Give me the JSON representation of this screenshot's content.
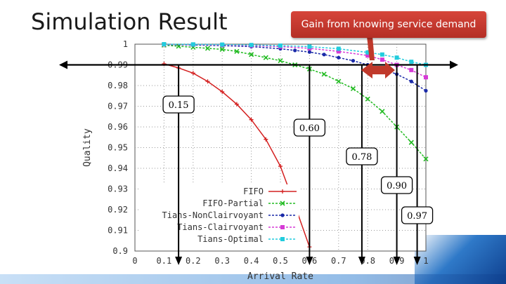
{
  "slide": {
    "title": "Simulation Result",
    "callout": "Gain from knowing service demand"
  },
  "chart_data": {
    "type": "line",
    "xlabel": "Arrival Rate",
    "ylabel": "Quality",
    "xlim": [
      0,
      1
    ],
    "ylim": [
      0.9,
      1
    ],
    "x_ticks": [
      "0",
      "0.1",
      "0.2",
      "0.3",
      "0.4",
      "0.5",
      "0.6",
      "0.7",
      "0.8",
      "0.9",
      "1"
    ],
    "y_ticks": [
      "1",
      "0.99",
      "0.98",
      "0.97",
      "0.96",
      "0.95",
      "0.94",
      "0.93",
      "0.92",
      "0.91",
      "0.9"
    ],
    "grid": true,
    "legend_position": "bottom-left",
    "series": [
      {
        "name": "FIFO",
        "color": "#d42020",
        "marker": "plus",
        "points": [
          [
            0.1,
            0.9905
          ],
          [
            0.15,
            0.9885
          ],
          [
            0.2,
            0.986
          ],
          [
            0.25,
            0.982
          ],
          [
            0.3,
            0.977
          ],
          [
            0.35,
            0.971
          ],
          [
            0.4,
            0.9635
          ],
          [
            0.45,
            0.954
          ],
          [
            0.5,
            0.941
          ],
          [
            0.55,
            0.922
          ],
          [
            0.6,
            0.902
          ]
        ]
      },
      {
        "name": "FIFO-Partial",
        "color": "#22bb22",
        "marker": "x",
        "points": [
          [
            0.1,
            0.9995
          ],
          [
            0.15,
            0.999
          ],
          [
            0.2,
            0.9985
          ],
          [
            0.25,
            0.998
          ],
          [
            0.3,
            0.9975
          ],
          [
            0.35,
            0.9965
          ],
          [
            0.4,
            0.995
          ],
          [
            0.45,
            0.9935
          ],
          [
            0.5,
            0.992
          ],
          [
            0.55,
            0.99
          ],
          [
            0.6,
            0.988
          ],
          [
            0.65,
            0.9855
          ],
          [
            0.7,
            0.982
          ],
          [
            0.75,
            0.9785
          ],
          [
            0.8,
            0.9735
          ],
          [
            0.85,
            0.9675
          ],
          [
            0.9,
            0.96
          ],
          [
            0.95,
            0.9525
          ],
          [
            1.0,
            0.9445
          ]
        ]
      },
      {
        "name": "Tians-NonClairvoyant",
        "color": "#1a2aa8",
        "marker": "star",
        "points": [
          [
            0.1,
            0.9998
          ],
          [
            0.2,
            0.9996
          ],
          [
            0.3,
            0.9993
          ],
          [
            0.4,
            0.9988
          ],
          [
            0.5,
            0.9978
          ],
          [
            0.55,
            0.997
          ],
          [
            0.6,
            0.9962
          ],
          [
            0.65,
            0.995
          ],
          [
            0.7,
            0.9935
          ],
          [
            0.75,
            0.992
          ],
          [
            0.8,
            0.99
          ],
          [
            0.85,
            0.988
          ],
          [
            0.9,
            0.9855
          ],
          [
            0.95,
            0.982
          ],
          [
            1.0,
            0.9775
          ]
        ]
      },
      {
        "name": "Tians-Clairvoyant",
        "color": "#d63ad6",
        "marker": "square",
        "points": [
          [
            0.1,
            0.9999
          ],
          [
            0.2,
            0.9998
          ],
          [
            0.3,
            0.9996
          ],
          [
            0.4,
            0.9993
          ],
          [
            0.5,
            0.9988
          ],
          [
            0.6,
            0.998
          ],
          [
            0.7,
            0.9965
          ],
          [
            0.8,
            0.9945
          ],
          [
            0.85,
            0.9925
          ],
          [
            0.9,
            0.99
          ],
          [
            0.95,
            0.9875
          ],
          [
            1.0,
            0.984
          ]
        ]
      },
      {
        "name": "Tians-Optimal",
        "color": "#22ccdd",
        "marker": "square",
        "points": [
          [
            0.1,
            1.0
          ],
          [
            0.2,
            0.9999
          ],
          [
            0.3,
            0.9998
          ],
          [
            0.4,
            0.9996
          ],
          [
            0.5,
            0.9993
          ],
          [
            0.6,
            0.9988
          ],
          [
            0.7,
            0.9978
          ],
          [
            0.8,
            0.996
          ],
          [
            0.85,
            0.995
          ],
          [
            0.9,
            0.9935
          ],
          [
            0.95,
            0.9915
          ],
          [
            1.0,
            0.99
          ]
        ]
      }
    ],
    "annotations": [
      {
        "label": "0.15",
        "x": 0.15
      },
      {
        "label": "0.60",
        "x": 0.6
      },
      {
        "label": "0.78",
        "x": 0.78
      },
      {
        "label": "0.90",
        "x": 0.9
      },
      {
        "label": "0.97",
        "x": 0.97
      }
    ],
    "threshold": 0.99
  }
}
